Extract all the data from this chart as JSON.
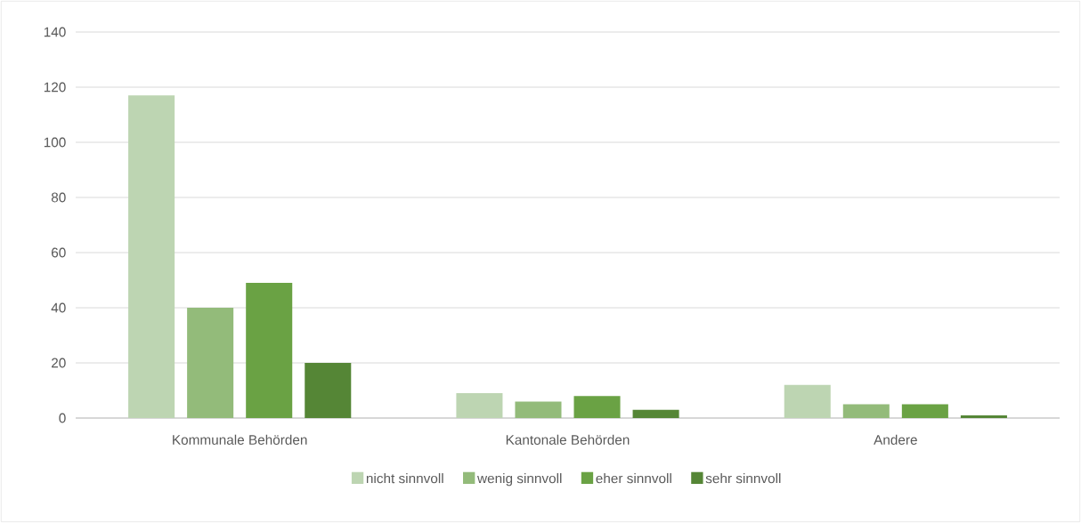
{
  "chart_data": {
    "type": "bar",
    "categories": [
      "Kommunale Behörden",
      "Kantonale Behörden",
      "Andere"
    ],
    "series": [
      {
        "name": "nicht sinnvoll",
        "color": "#bdd5b2",
        "values": [
          117,
          9,
          12
        ]
      },
      {
        "name": "wenig sinnvoll",
        "color": "#93bb7a",
        "values": [
          40,
          6,
          5
        ]
      },
      {
        "name": "eher sinnvoll",
        "color": "#6aa244",
        "values": [
          49,
          8,
          5
        ]
      },
      {
        "name": "sehr sinnvoll",
        "color": "#558636",
        "values": [
          20,
          3,
          1
        ]
      }
    ],
    "ylim": [
      0,
      140
    ],
    "yticks": [
      0,
      20,
      40,
      60,
      80,
      100,
      120,
      140
    ],
    "grid": "y",
    "legend": "bottom"
  }
}
